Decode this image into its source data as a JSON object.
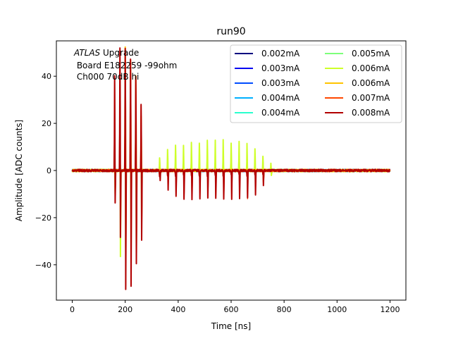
{
  "chart_data": {
    "type": "line",
    "title": "run90",
    "xlabel": "Time [ns]",
    "ylabel": "Amplitude [ADC counts]",
    "xlim": [
      -60,
      1260
    ],
    "ylim": [
      -55,
      55
    ],
    "xticks": [
      0,
      200,
      400,
      600,
      800,
      1000,
      1200
    ],
    "yticks": [
      -40,
      -20,
      0,
      20,
      40
    ],
    "grid": false,
    "legend_position": "top-right",
    "legend_columns": 2,
    "annotation": {
      "italic": "ATLAS",
      "rest": " Upgrade",
      "line2": " Board E182259 -99ohm",
      "line3": " Ch000 70dB hi"
    },
    "series": [
      {
        "name": "0.002mA",
        "color": "#00007f"
      },
      {
        "name": "0.003mA",
        "color": "#0000f1"
      },
      {
        "name": "0.003mA",
        "color": "#004cff"
      },
      {
        "name": "0.004mA",
        "color": "#00b0ff"
      },
      {
        "name": "0.004mA",
        "color": "#29ffce"
      },
      {
        "name": "0.005mA",
        "color": "#7dff7a"
      },
      {
        "name": "0.006mA",
        "color": "#ceff29"
      },
      {
        "name": "0.006mA",
        "color": "#ffc400"
      },
      {
        "name": "0.007mA",
        "color": "#ff4700"
      },
      {
        "name": "0.008mA",
        "color": "#b20000"
      }
    ],
    "pulse_train_1": {
      "series": "0.008mA",
      "t": [
        160,
        180,
        200,
        220,
        240,
        260
      ],
      "peak": [
        40,
        52,
        52,
        47,
        40,
        28
      ],
      "trough": [
        -14,
        -28,
        -50,
        -49,
        -40,
        -30
      ]
    },
    "pulse_train_2": {
      "series": "0.008mA",
      "t": [
        330,
        360,
        390,
        420,
        450,
        480,
        510,
        540,
        570,
        600,
        630,
        660,
        690,
        720
      ],
      "peak": [
        -3,
        -2,
        -2,
        -2,
        -2,
        -2,
        -2,
        -2,
        -2,
        -2,
        -2,
        -2,
        -2,
        -2
      ],
      "trough": [
        -4,
        -8,
        -11,
        -12,
        -12,
        -12,
        -12,
        -12,
        -12,
        -12,
        -12,
        -12,
        -10,
        -6
      ]
    },
    "pulse_train_green": {
      "series": "0.006mA",
      "t": [
        160,
        180,
        200,
        220,
        240,
        260,
        330,
        360,
        390,
        420,
        450,
        480,
        510,
        540,
        570,
        600,
        630,
        660,
        690,
        720,
        750
      ],
      "peak": [
        2,
        4,
        5,
        4,
        3,
        3,
        5,
        9,
        11,
        11,
        12,
        12,
        13,
        13,
        13,
        12,
        12,
        11,
        9,
        6,
        3
      ],
      "trough": [
        -10,
        -37,
        -33,
        -34,
        -33,
        -20,
        -2,
        -3,
        -3,
        -3,
        -3,
        -3,
        -3,
        -3,
        -3,
        -3,
        -3,
        -3,
        -3,
        -4,
        -2
      ]
    },
    "pulse_train_orange": {
      "series": "0.006mA",
      "t": [
        160,
        180,
        200,
        220,
        240,
        260,
        720
      ],
      "peak": [
        2,
        4,
        52,
        47,
        40,
        23,
        0
      ],
      "trough": [
        -2,
        -2,
        -2,
        -2,
        -2,
        -2,
        -5
      ]
    }
  }
}
